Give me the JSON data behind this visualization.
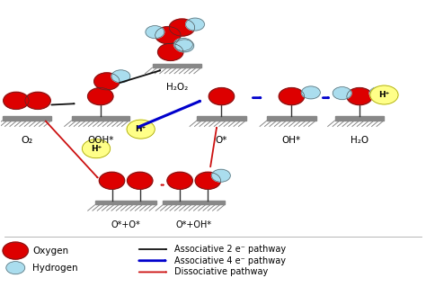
{
  "bg_color": "#ffffff",
  "oxygen_color": "#dd0000",
  "hydrogen_color": "#aaddee",
  "surface_bar_color": "#888888",
  "hatch_color": "#888888",
  "black_arrow": "#111111",
  "blue_arrow": "#0000cc",
  "red_arrow": "#cc1111",
  "yellow_bg": "#ffff88",
  "legend": {
    "oxygen_label": "Oxygen",
    "hydrogen_label": "Hydrogen",
    "black_label": "Associative 2 e⁻ pathway",
    "blue_label": "Associative 4 e⁻ pathway",
    "red_label": "Dissociative pathway"
  },
  "labels": {
    "O2": "O₂",
    "OOH": "OOH*",
    "H2O2": "H₂O₂",
    "Ostar": "O*",
    "OHstar": "OH*",
    "H2O": "H₂O",
    "OstarOstar": "O*+O*",
    "OstarOHstar": "O*+OH*",
    "Hplus": "H⁺"
  }
}
